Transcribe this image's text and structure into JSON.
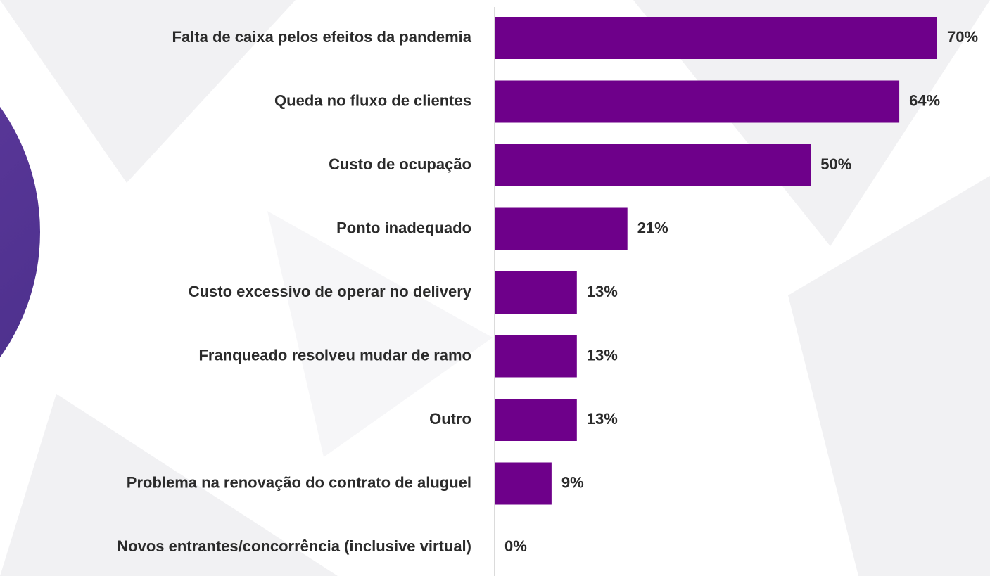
{
  "chart_data": {
    "type": "bar",
    "categories": [
      "Falta de caixa pelos efeitos da pandemia",
      "Queda no fluxo de clientes",
      "Custo de ocupação",
      "Ponto inadequado",
      "Custo excessivo de operar no delivery",
      "Franqueado resolveu mudar de ramo",
      "Outro",
      "Problema na renovação do contrato de aluguel",
      "Novos entrantes/concorrência (inclusive virtual)"
    ],
    "values": [
      70,
      64,
      50,
      21,
      13,
      13,
      13,
      9,
      0
    ],
    "value_labels": [
      "70%",
      "64%",
      "50%",
      "21%",
      "13%",
      "13%",
      "13%",
      "9%",
      "0%"
    ],
    "color": "#6e008a"
  }
}
